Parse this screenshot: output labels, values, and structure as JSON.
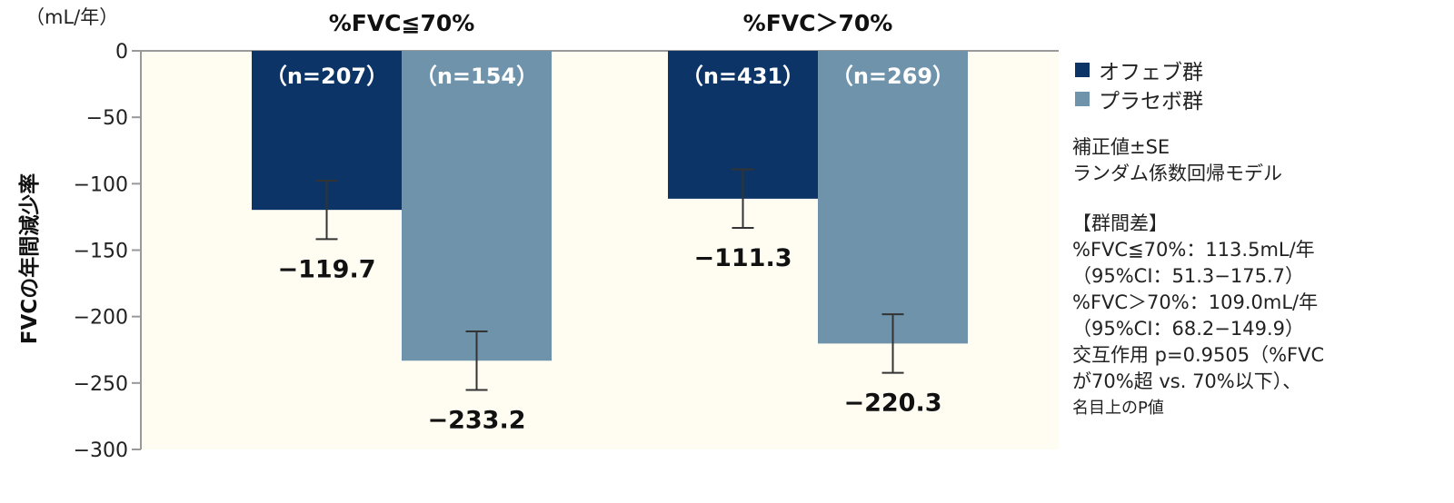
{
  "chart_data": {
    "type": "bar",
    "unit_label": "（mL/年）",
    "ylabel": "FVCの年間減少率",
    "ylim": [
      -300,
      0
    ],
    "yticks": [
      0,
      -50,
      -100,
      -150,
      -200,
      -250,
      -300
    ],
    "ytick_labels": [
      "0",
      "−50",
      "−100",
      "−150",
      "−200",
      "−250",
      "−300"
    ],
    "background_color": "#fffdf2",
    "groups": [
      {
        "title": "%FVC≦70%",
        "bars": [
          {
            "series": "オフェブ群",
            "value": -119.7,
            "label": "−119.7",
            "n_label": "（n=207）",
            "se": 22
          },
          {
            "series": "プラセボ群",
            "value": -233.2,
            "label": "−233.2",
            "n_label": "（n=154）",
            "se": 22
          }
        ]
      },
      {
        "title": "%FVC＞70%",
        "bars": [
          {
            "series": "オフェブ群",
            "value": -111.3,
            "label": "−111.3",
            "n_label": "（n=431）",
            "se": 22
          },
          {
            "series": "プラセボ群",
            "value": -220.3,
            "label": "−220.3",
            "n_label": "（n=269）",
            "se": 22
          }
        ]
      }
    ],
    "series": [
      {
        "name": "オフェブ群",
        "color": "#0d3466"
      },
      {
        "name": "プラセボ群",
        "color": "#6e93ab"
      }
    ],
    "legend_placement": "right",
    "grid": false
  },
  "notes": {
    "line1": "補正値±SE",
    "line2": "ランダム係数回帰モデル",
    "diff_header": "【群間差】",
    "diff1": "%FVC≦70%：113.5mL/年",
    "ci1": "（95%CI：51.3−175.7）",
    "diff2": "%FVC＞70%：109.0mL/年",
    "ci2": "（95%CI：68.2−149.9）",
    "interaction1": "交互作用 p=0.9505（%FVC",
    "interaction2": "が70%超 vs. 70%以下）、",
    "interaction3": "名目上のP値"
  }
}
